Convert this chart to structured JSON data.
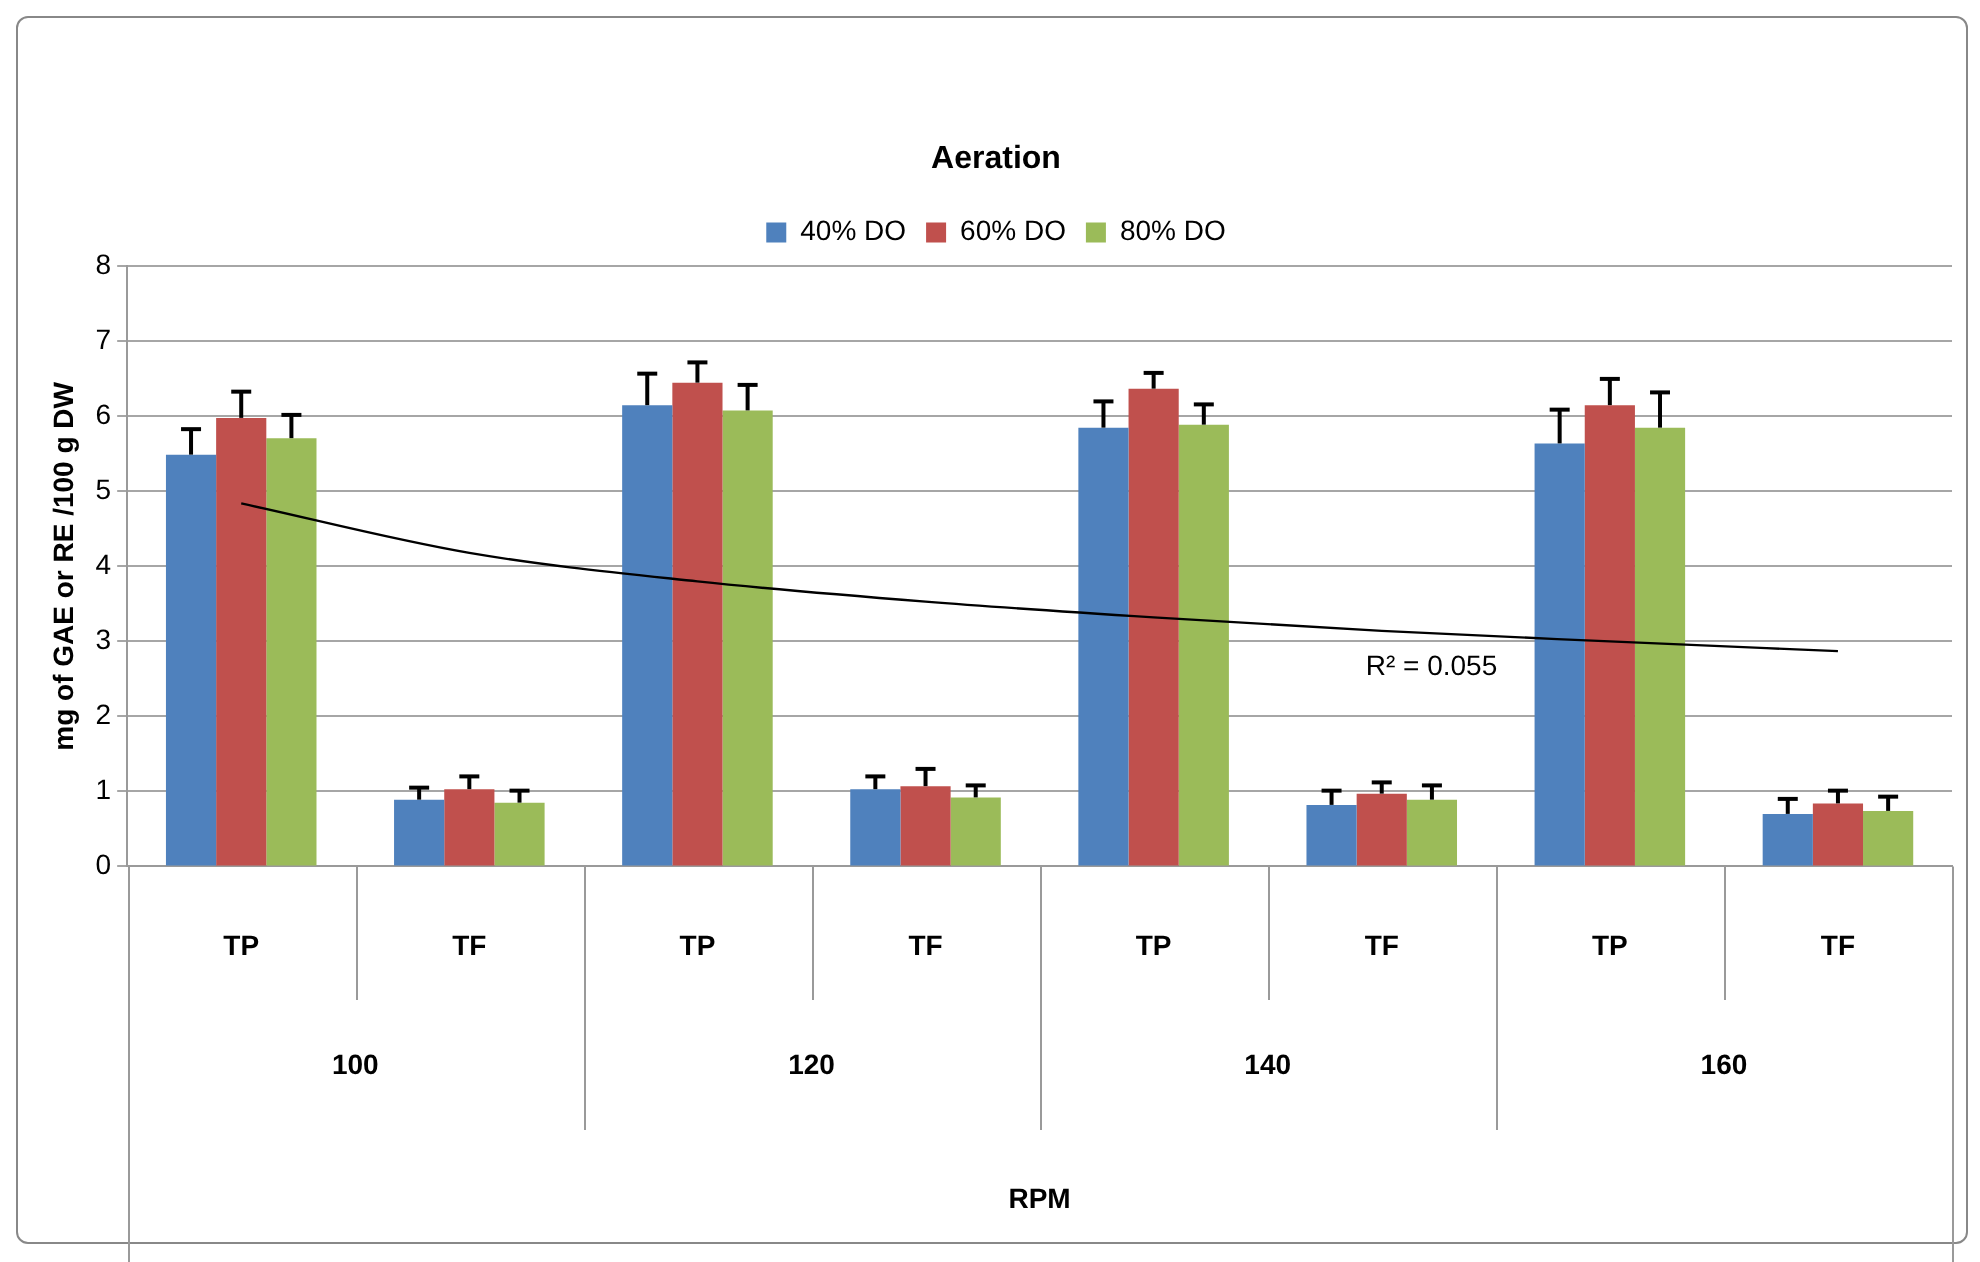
{
  "chart_data": {
    "type": "bar",
    "title": "Aeration",
    "ylabel": "mg of GAE or RE /100 g DW",
    "categories": [
      "TP",
      "TF",
      "TP",
      "TF",
      "TP",
      "TF",
      "TP",
      "TF"
    ],
    "series": [
      {
        "name": "40% DO",
        "color": "#4f81bd",
        "values": [
          5.49,
          0.89,
          6.15,
          1.03,
          5.85,
          0.82,
          5.64,
          0.7
        ],
        "errors": [
          [
            5.49,
            5.83
          ],
          [
            0.89,
            1.05
          ],
          [
            6.15,
            6.57
          ],
          [
            1.03,
            1.2
          ],
          [
            5.85,
            6.2
          ],
          [
            0.82,
            1.01
          ],
          [
            5.64,
            6.09
          ],
          [
            0.7,
            0.9
          ]
        ]
      },
      {
        "name": "60% DO",
        "color": "#c0504d",
        "values": [
          5.98,
          1.03,
          6.45,
          1.07,
          6.37,
          0.97,
          6.15,
          0.84
        ],
        "errors": [
          [
            5.98,
            6.33
          ],
          [
            1.03,
            1.2
          ],
          [
            6.45,
            6.72
          ],
          [
            1.07,
            1.3
          ],
          [
            6.37,
            6.58
          ],
          [
            0.97,
            1.12
          ],
          [
            6.15,
            6.5
          ],
          [
            0.84,
            1.01
          ]
        ]
      },
      {
        "name": "80% DO",
        "color": "#9bbb59",
        "values": [
          5.71,
          0.85,
          6.08,
          0.92,
          5.89,
          0.89,
          5.85,
          0.74
        ],
        "errors": [
          [
            5.71,
            6.02
          ],
          [
            0.85,
            1.01
          ],
          [
            6.08,
            6.42
          ],
          [
            0.92,
            1.08
          ],
          [
            5.89,
            6.16
          ],
          [
            0.89,
            1.08
          ],
          [
            5.85,
            6.32
          ],
          [
            0.74,
            0.93
          ]
        ]
      },
      {
        "type": "line",
        "color": "#000000",
        "values": [
          4.84,
          4.18,
          3.8,
          3.53,
          3.32,
          3.14,
          3.0,
          2.87
        ]
      }
    ],
    "annotations": [
      "100",
      "120",
      "140",
      "160",
      "R² = 0.055",
      "RPM"
    ],
    "ylim": [
      0,
      8
    ],
    "yticks": [
      0,
      1,
      2,
      3,
      4,
      5,
      6,
      7,
      8
    ],
    "grid": "y",
    "legend": "top",
    "marker": "none"
  }
}
